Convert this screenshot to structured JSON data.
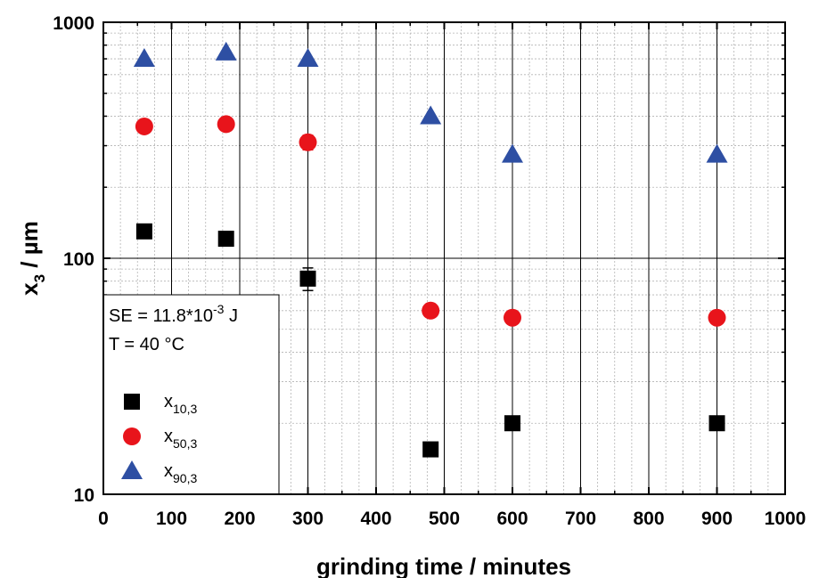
{
  "chart_data": {
    "type": "scatter",
    "xlabel": "grinding time  / minutes",
    "ylabel": {
      "main": "x",
      "sub": "3",
      "rest": " / µm"
    },
    "xlim": [
      0,
      1000
    ],
    "ylim": [
      10,
      1000
    ],
    "yscale": "log",
    "x_ticks": [
      0,
      100,
      200,
      300,
      400,
      500,
      600,
      700,
      800,
      900,
      1000
    ],
    "x_tick_labels": [
      "0",
      "100",
      "200",
      "300",
      "400",
      "500",
      "600",
      "700",
      "800",
      "900",
      "1000"
    ],
    "y_ticks": [
      10,
      100,
      1000
    ],
    "y_tick_labels": [
      "10",
      "100",
      "1000"
    ],
    "grid": true,
    "legend_position": "bottom-left",
    "annotation": {
      "line1_prefix": "SE = 11.8*10",
      "line1_exp": "-3",
      "line1_suffix": " J",
      "line2": "T = 40 °C"
    },
    "series": [
      {
        "name": "x10,3",
        "label_main": "x",
        "label_sub": "10,3",
        "marker": "square",
        "color": "#000000",
        "x": [
          60,
          180,
          300,
          480,
          600,
          900
        ],
        "y": [
          130,
          121,
          82,
          15.5,
          20,
          20
        ],
        "err": [
          0,
          0,
          9,
          0,
          0,
          0
        ]
      },
      {
        "name": "x50,3",
        "label_main": "x",
        "label_sub": "50,3",
        "marker": "circle",
        "color": "#e8141b",
        "x": [
          60,
          180,
          300,
          480,
          600,
          900
        ],
        "y": [
          362,
          370,
          310,
          60,
          56,
          56
        ],
        "err": [
          0,
          0,
          22,
          0,
          0,
          0
        ]
      },
      {
        "name": "x90,3",
        "label_main": "x",
        "label_sub": "90,3",
        "marker": "triangle",
        "color": "#2e4fa3",
        "x": [
          60,
          180,
          300,
          480,
          600,
          900
        ],
        "y": [
          700,
          745,
          700,
          400,
          275,
          275
        ],
        "err": [
          0,
          0,
          0,
          0,
          0,
          0
        ]
      }
    ]
  }
}
